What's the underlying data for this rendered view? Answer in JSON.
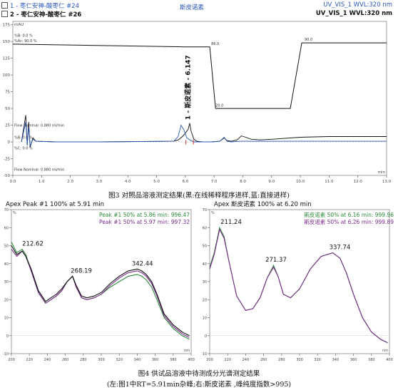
{
  "header": {
    "trace1": "1 - 枣仁安神-酸枣仁 #24",
    "trace2": "2 - 枣仁安神-酸枣仁 #26",
    "center_title": "斯皮诺素",
    "det1": "UV_VIS_1 WVL:320 nm",
    "det2": "UV_VIS_1 WVL:320 nm"
  },
  "captions": {
    "fig3": "图3  对照品溶液测定结果(黑:在线稀释程序进样,蓝:直接进样)",
    "fig4_l1": "图4  供试品溶液中待测成分光谱测定结果",
    "fig4_l2": "(左:图1中RT=5.91min杂峰;右:斯皮诺素 ,峰纯度指数>995)"
  },
  "colors": {
    "black": "#111111",
    "blue": "#2a57b8",
    "green": "#2e8b3c",
    "purple": "#7b2c8c",
    "red": "#cc2222"
  },
  "chart_data": [
    {
      "type": "line",
      "ylabel": "mAU",
      "xlabel": "min",
      "xlim": [
        0,
        13
      ],
      "ylim": [
        -50,
        180
      ],
      "x_ticks": [
        0.0,
        1.0,
        2.0,
        3.0,
        4.0,
        5.0,
        6.0,
        7.0,
        8.0,
        9.0,
        10.0,
        11.0,
        12.0,
        13.0
      ],
      "y_ticks": [
        -50,
        -25,
        0,
        25,
        50,
        75,
        100,
        125,
        150,
        175
      ],
      "annotations": {
        "b0": "%B: 0.0 %",
        "bac": "%Ac: 90.0 %",
        "g1": "86.0",
        "g2": "20.0",
        "g3": "90.0",
        "flow1": "Flow Nominal: 0.880 ml/min",
        "b2": "%B: 0.0 %",
        "c2": "%C: 0.0 %",
        "flow2": "Flow Nominal: 0.880 ml/min",
        "peak_label": "1 - 斯皮诺素 - 6.147"
      },
      "gradient": {
        "x": [
          0,
          5.9,
          6.85,
          7.05,
          9.65,
          10.05,
          13
        ],
        "y": [
          146,
          142,
          142,
          50,
          50,
          148,
          148
        ]
      },
      "series": [
        {
          "x": [
            0.3,
            0.45,
            0.5,
            0.55,
            0.6,
            0.7,
            0.8,
            1.5,
            3,
            5.6,
            5.75,
            5.9,
            6.0,
            6.1,
            6.15,
            6.2,
            6.3,
            6.4,
            6.6,
            6.9,
            7.2,
            7.35,
            7.45,
            7.6,
            7.8,
            7.95,
            8.1,
            8.3,
            8.6,
            9,
            10,
            11,
            12,
            13
          ],
          "y": [
            0,
            40,
            -5,
            30,
            -8,
            6,
            1,
            0,
            0,
            1,
            3,
            8,
            13,
            19,
            28,
            16,
            4,
            1,
            0,
            0,
            1,
            6,
            2,
            1,
            3,
            9,
            7,
            4,
            3,
            4,
            7,
            8,
            8,
            8
          ]
        },
        {
          "x": [
            0.3,
            0.45,
            0.5,
            0.55,
            0.6,
            0.7,
            0.8,
            1.5,
            3,
            5.6,
            5.75,
            5.85,
            5.95,
            6.05,
            6.2,
            6.3,
            6.6,
            6.9,
            7.2,
            7.35,
            7.45,
            7.6,
            7.9,
            8.1,
            8.4,
            9,
            10,
            11,
            12,
            13
          ],
          "y": [
            0,
            30,
            -4,
            22,
            -6,
            4,
            1,
            0,
            0,
            1,
            8,
            25,
            18,
            6,
            2,
            0,
            0,
            0,
            1,
            7,
            1,
            0,
            1,
            1,
            1,
            1,
            1,
            1,
            1,
            1
          ]
        }
      ]
    },
    {
      "type": "line",
      "title": "Apex Peak #1 100% at 5.91 min",
      "ylabel": "%",
      "xlabel": "nm",
      "xlim": [
        200,
        400
      ],
      "ylim": [
        -10,
        70
      ],
      "x_ticks": [
        200,
        220,
        240,
        260,
        280,
        300,
        320,
        340,
        360,
        380,
        400
      ],
      "y_ticks": [
        -10,
        0,
        10,
        20,
        30,
        40,
        50,
        60,
        70
      ],
      "legend": [
        "Peak #1 50% at 5.86 min: 996.47",
        "Peak #1 50% at 5.97 min: 997.32"
      ],
      "peak_labels": [
        "212.62",
        "268.19",
        "342.44"
      ],
      "series": [
        {
          "x": [
            200,
            206,
            212,
            216,
            222,
            230,
            238,
            244,
            250,
            256,
            262,
            268,
            272,
            278,
            284,
            292,
            300,
            310,
            320,
            330,
            340,
            345,
            350,
            356,
            362,
            370,
            380,
            390,
            398
          ],
          "y": [
            52,
            46,
            48,
            45,
            36,
            24,
            18,
            20,
            22,
            25,
            30,
            33,
            28,
            21,
            20,
            21,
            23,
            27,
            30,
            33,
            34,
            33,
            31,
            27,
            20,
            10,
            4,
            0,
            -2
          ]
        },
        {
          "x": [
            200,
            206,
            212,
            216,
            222,
            230,
            238,
            244,
            250,
            256,
            262,
            268,
            272,
            278,
            284,
            292,
            300,
            310,
            320,
            330,
            340,
            345,
            350,
            356,
            362,
            370,
            380,
            390,
            398
          ],
          "y": [
            48,
            44,
            47,
            44,
            36,
            24,
            18,
            20,
            22,
            25,
            30,
            33,
            27,
            21,
            20,
            21,
            23,
            28,
            32,
            35,
            36,
            35,
            33,
            29,
            22,
            11,
            5,
            1,
            -1
          ]
        },
        {
          "x": [
            200,
            206,
            212,
            216,
            222,
            230,
            238,
            244,
            250,
            256,
            262,
            268,
            272,
            278,
            284,
            292,
            300,
            310,
            320,
            330,
            340,
            345,
            350,
            356,
            362,
            370,
            380,
            390,
            398
          ],
          "y": [
            50,
            45,
            47,
            44,
            37,
            25,
            19,
            21,
            23,
            26,
            30,
            33,
            28,
            22,
            21,
            22,
            24,
            29,
            33,
            36,
            37,
            36,
            34,
            30,
            23,
            12,
            6,
            2,
            0
          ]
        }
      ]
    },
    {
      "type": "line",
      "title": "Apex 斯皮诺素 100% at 6.20 min",
      "ylabel": "%",
      "xlabel": "nm",
      "xlim": [
        200,
        400
      ],
      "ylim": [
        -10,
        70
      ],
      "x_ticks": [
        200,
        220,
        240,
        260,
        280,
        300,
        320,
        340,
        360,
        380,
        400
      ],
      "y_ticks": [
        -10,
        0,
        10,
        20,
        30,
        40,
        50,
        60,
        70
      ],
      "legend": [
        "斯皮诺素 50% at 6.16 min: 999.96",
        "斯皮诺素 50% at 6.26 min: 999.89"
      ],
      "peak_labels": [
        "211.24",
        "271.37",
        "337.74"
      ],
      "series": [
        {
          "x": [
            200,
            205,
            211,
            216,
            222,
            230,
            240,
            248,
            256,
            264,
            271,
            276,
            282,
            290,
            300,
            312,
            324,
            337,
            345,
            352,
            360,
            370,
            380,
            390,
            398
          ],
          "y": [
            38,
            46,
            60,
            55,
            40,
            22,
            14,
            15,
            21,
            32,
            39,
            33,
            23,
            21,
            26,
            37,
            44,
            46,
            43,
            35,
            23,
            10,
            2,
            -2,
            -4
          ]
        },
        {
          "x": [
            200,
            205,
            211,
            216,
            222,
            230,
            240,
            248,
            256,
            264,
            271,
            276,
            282,
            290,
            300,
            312,
            324,
            337,
            345,
            352,
            360,
            370,
            380,
            390,
            398
          ],
          "y": [
            37,
            45,
            59,
            54,
            40,
            22,
            14,
            15,
            21,
            32,
            38,
            33,
            23,
            21,
            26,
            37,
            44,
            46,
            43,
            35,
            23,
            10,
            2,
            -2,
            -4
          ]
        }
      ]
    }
  ]
}
